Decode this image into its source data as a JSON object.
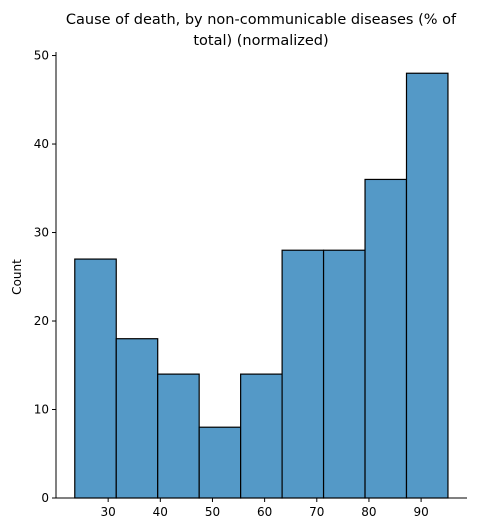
{
  "chart_data": {
    "type": "bar",
    "title": "Cause of death, by non-communicable diseases (% of total) (normalized)",
    "title_lines": [
      "Cause of death, by non-communicable diseases (% of",
      "total) (normalized)"
    ],
    "xlabel": "",
    "ylabel": "Count",
    "bin_edges": [
      23.6,
      31.55,
      39.5,
      47.45,
      55.4,
      63.35,
      71.3,
      79.25,
      87.2,
      95.15
    ],
    "values": [
      27,
      18,
      14,
      8,
      14,
      28,
      28,
      36,
      48
    ],
    "xlim": [
      20.0,
      98.8
    ],
    "ylim": [
      0,
      50.4
    ],
    "xticks": [
      30,
      40,
      50,
      60,
      70,
      80,
      90
    ],
    "yticks": [
      0,
      10,
      20,
      30,
      40,
      50
    ],
    "bar_color": "#5499c7",
    "edge_color": "#000000",
    "grid": false
  }
}
